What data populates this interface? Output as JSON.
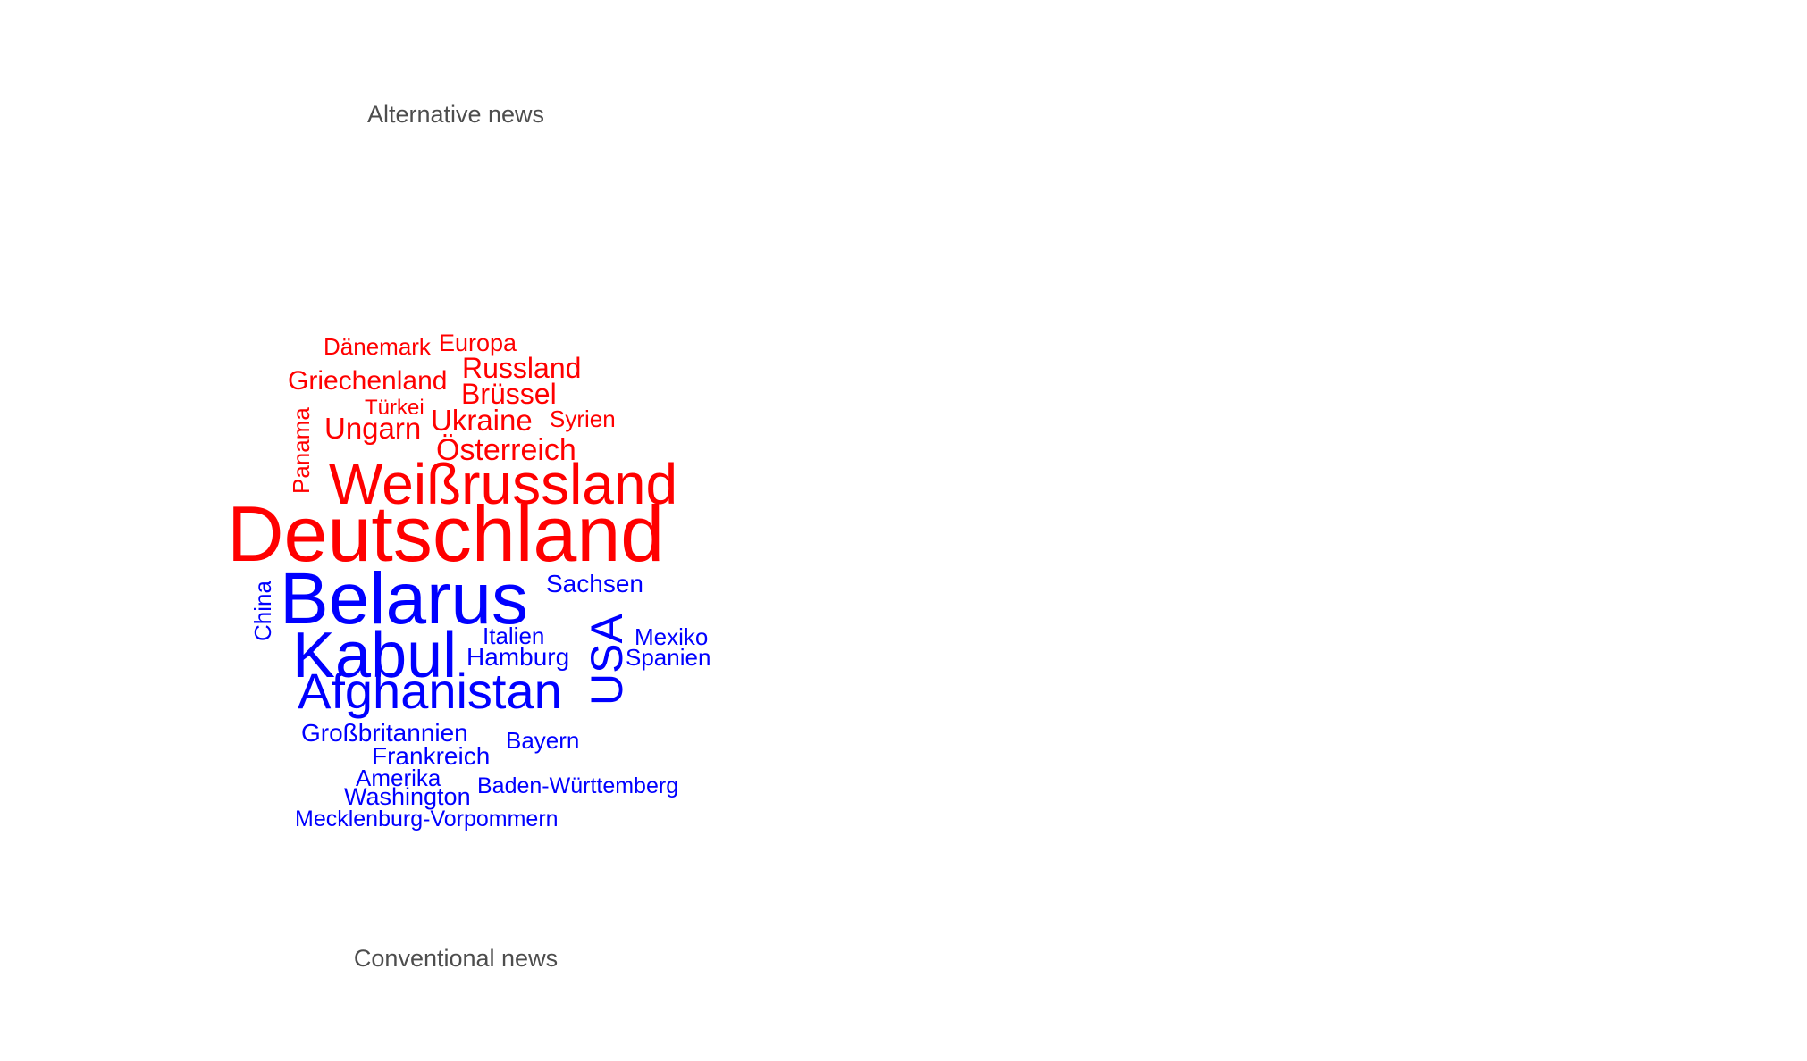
{
  "chart_data": {
    "type": "wordcloud",
    "groups": [
      {
        "label": "Alternative news",
        "color": "#ff0000"
      },
      {
        "label": "Conventional news",
        "color": "#0000ff"
      }
    ],
    "words": [
      {
        "text": "Dänemark",
        "group": "Alternative news",
        "rotated": false
      },
      {
        "text": "Europa",
        "group": "Alternative news",
        "rotated": false
      },
      {
        "text": "Griechenland",
        "group": "Alternative news",
        "rotated": false
      },
      {
        "text": "Russland",
        "group": "Alternative news",
        "rotated": false
      },
      {
        "text": "Brüssel",
        "group": "Alternative news",
        "rotated": false
      },
      {
        "text": "Türkei",
        "group": "Alternative news",
        "rotated": false
      },
      {
        "text": "Ukraine",
        "group": "Alternative news",
        "rotated": false
      },
      {
        "text": "Syrien",
        "group": "Alternative news",
        "rotated": false
      },
      {
        "text": "Ungarn",
        "group": "Alternative news",
        "rotated": false
      },
      {
        "text": "Panama",
        "group": "Alternative news",
        "rotated": true
      },
      {
        "text": "Österreich",
        "group": "Alternative news",
        "rotated": false
      },
      {
        "text": "Weißrussland",
        "group": "Alternative news",
        "rotated": false
      },
      {
        "text": "Deutschland",
        "group": "Alternative news",
        "rotated": false
      },
      {
        "text": "Belarus",
        "group": "Conventional news",
        "rotated": false
      },
      {
        "text": "Sachsen",
        "group": "Conventional news",
        "rotated": false
      },
      {
        "text": "China",
        "group": "Conventional news",
        "rotated": true
      },
      {
        "text": "Kabul",
        "group": "Conventional news",
        "rotated": false
      },
      {
        "text": "USA",
        "group": "Conventional news",
        "rotated": true
      },
      {
        "text": "Italien",
        "group": "Conventional news",
        "rotated": false
      },
      {
        "text": "Mexiko",
        "group": "Conventional news",
        "rotated": false
      },
      {
        "text": "Hamburg",
        "group": "Conventional news",
        "rotated": false
      },
      {
        "text": "Spanien",
        "group": "Conventional news",
        "rotated": false
      },
      {
        "text": "Afghanistan",
        "group": "Conventional news",
        "rotated": false
      },
      {
        "text": "Großbritannien",
        "group": "Conventional news",
        "rotated": false
      },
      {
        "text": "Bayern",
        "group": "Conventional news",
        "rotated": false
      },
      {
        "text": "Frankreich",
        "group": "Conventional news",
        "rotated": false
      },
      {
        "text": "Amerika",
        "group": "Conventional news",
        "rotated": false
      },
      {
        "text": "Washington",
        "group": "Conventional news",
        "rotated": false
      },
      {
        "text": "Baden-Württemberg",
        "group": "Conventional news",
        "rotated": false
      },
      {
        "text": "Mecklenburg-Vorpommern",
        "group": "Conventional news",
        "rotated": false
      }
    ]
  }
}
